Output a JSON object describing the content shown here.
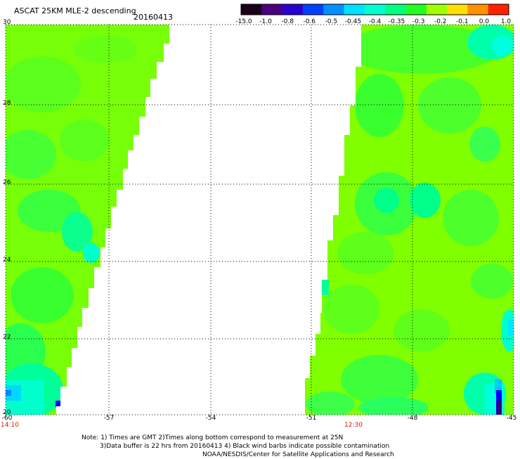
{
  "header": {
    "title": "ASCAT 25KM MLE-2 descending",
    "date": "20160413"
  },
  "colorbar": {
    "labels": [
      "-15.0",
      "-1.0",
      "-0.8",
      "-0.6",
      "-0.5",
      "-0.45",
      "-0.4",
      "-0.35",
      "-0.3",
      "-0.2",
      "-0.1",
      "0.0",
      "1.0"
    ],
    "colors": [
      "#1a001a",
      "#4a0080",
      "#2a00d0",
      "#0040ff",
      "#0090ff",
      "#00e0ff",
      "#00ffd0",
      "#00ff80",
      "#20ff20",
      "#a0ff00",
      "#ffe000",
      "#ff9000",
      "#ff2000"
    ]
  },
  "map": {
    "lat_labels": [
      "30",
      "28",
      "26",
      "24",
      "22",
      "20"
    ],
    "lon_labels": [
      "-60",
      "-57",
      "-54",
      "-51",
      "-48",
      "-45"
    ],
    "time_labels": [
      "14:10",
      "12:30"
    ],
    "colors": {
      "dominant": "#7fff00",
      "mid_green": "#33ff33",
      "cyan": "#00ffcc",
      "blue": "#0000ff",
      "time_label": "#cc2200"
    }
  },
  "notes": {
    "line1": "Note: 1) Times are GMT 2)Times along bottom correspond to measurement at 25N",
    "line2": "3)Data buffer is 22 hrs from 20160413 4) Black wind barbs indicate possible contamination",
    "line3": "NOAA/NESDIS/Center for Satellite Applications and Research"
  }
}
